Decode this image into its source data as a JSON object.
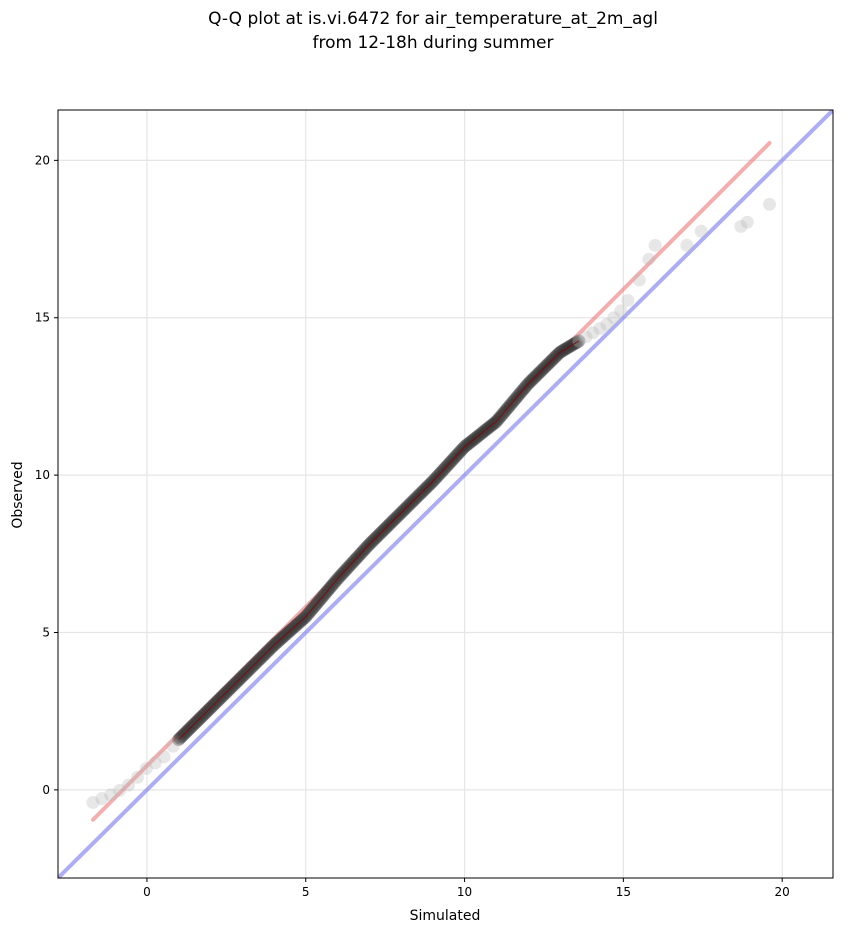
{
  "chart_data": {
    "type": "scatter",
    "title_lines": [
      "Q-Q plot at is.vi.6472 for air_temperature_at_2m_agl",
      "from 12-18h during summer"
    ],
    "xlabel": "Simulated",
    "ylabel": "Observed",
    "xlim": [
      -2.8,
      21.6
    ],
    "ylim": [
      -2.8,
      21.6
    ],
    "xticks": [
      0,
      5,
      10,
      15,
      20
    ],
    "yticks": [
      0,
      5,
      10,
      15,
      20
    ],
    "xtick_labels": [
      "0",
      "5",
      "10",
      "15",
      "20"
    ],
    "ytick_labels": [
      "0",
      "5",
      "10",
      "15",
      "20"
    ],
    "grid": true,
    "colors": {
      "points": "#333333",
      "outlier_points": "#bbbbbb",
      "fit_line": "#ee7777",
      "identity_line": "#7777ee",
      "density_trace": "#880000"
    },
    "identity_line": {
      "x": [
        -2.8,
        21.6
      ],
      "y": [
        -2.8,
        21.6
      ]
    },
    "fit_line": {
      "x": [
        -1.7,
        19.6
      ],
      "y": [
        -0.95,
        20.55
      ]
    },
    "quantile_curve": {
      "x": [
        -1.7,
        -1.0,
        -0.5,
        0.0,
        0.5,
        1.0,
        2.0,
        3.0,
        4.0,
        5.0,
        5.5,
        6.0,
        7.0,
        8.0,
        9.0,
        10.0,
        11.0,
        12.0,
        13.0,
        14.0,
        14.5,
        15.0,
        15.5,
        16.0,
        17.0,
        17.5,
        18.7,
        19.0,
        19.6
      ],
      "y": [
        -0.4,
        -0.1,
        0.2,
        0.7,
        1.0,
        1.6,
        2.6,
        3.6,
        4.6,
        5.5,
        6.1,
        6.7,
        7.8,
        8.8,
        9.8,
        10.9,
        11.7,
        12.9,
        13.9,
        14.5,
        14.8,
        15.3,
        16.2,
        17.3,
        17.3,
        17.8,
        17.9,
        18.1,
        18.6
      ]
    }
  }
}
